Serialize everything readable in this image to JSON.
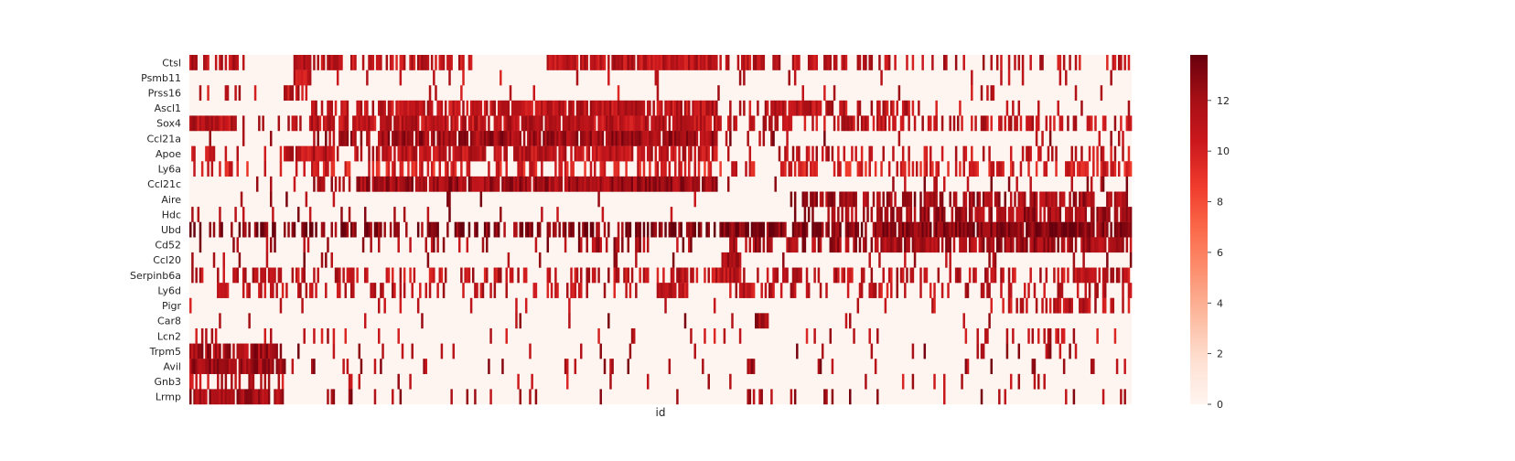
{
  "chart_data": {
    "type": "heatmap",
    "title": "",
    "xlabel": "id",
    "ylabel": "",
    "genes": [
      "Ctsl",
      "Psmb11",
      "Prss16",
      "Ascl1",
      "Sox4",
      "Ccl21a",
      "Apoe",
      "Ly6a",
      "Ccl21c",
      "Aire",
      "Hdc",
      "Ubd",
      "Cd52",
      "Ccl20",
      "Serpinb6a",
      "Ly6d",
      "Pigr",
      "Car8",
      "Lcn2",
      "Trpm5",
      "Avil",
      "Gnb3",
      "Lrmp"
    ],
    "colorbar": {
      "cmap": "Reds",
      "ticks": [
        0,
        2,
        4,
        6,
        8,
        10,
        12
      ],
      "vmin": 0,
      "vmax": 13.8
    },
    "x_axis": {
      "tick_labels": "none",
      "cell_count": 480
    },
    "expression_blocks": [
      {
        "gene": "Ctsl",
        "high_fraction_ranges": [
          [
            0.0,
            0.06,
            0.7
          ],
          [
            0.11,
            0.13,
            0.95
          ],
          [
            0.13,
            0.3,
            0.6
          ],
          [
            0.38,
            0.56,
            0.95
          ],
          [
            0.56,
            0.63,
            0.5
          ],
          [
            0.63,
            0.74,
            0.45
          ],
          [
            0.74,
            1.0,
            0.35
          ]
        ],
        "mean_level": 11
      },
      {
        "gene": "Psmb11",
        "high_fraction_ranges": [
          [
            0.11,
            0.13,
            0.9
          ],
          [
            0.13,
            1.0,
            0.05
          ]
        ],
        "mean_level": 11
      },
      {
        "gene": "Prss16",
        "high_fraction_ranges": [
          [
            0.1,
            0.13,
            0.8
          ],
          [
            0.0,
            1.0,
            0.04
          ]
        ],
        "mean_level": 11
      },
      {
        "gene": "Ascl1",
        "high_fraction_ranges": [
          [
            0.13,
            0.2,
            0.6
          ],
          [
            0.2,
            0.56,
            0.85
          ],
          [
            0.56,
            0.63,
            0.25
          ],
          [
            0.6,
            0.7,
            0.3
          ],
          [
            0.61,
            0.67,
            0.85
          ],
          [
            0.67,
            0.76,
            0.6
          ],
          [
            0.76,
            1.0,
            0.15
          ]
        ],
        "mean_level": 11
      },
      {
        "gene": "Sox4",
        "high_fraction_ranges": [
          [
            0.0,
            0.05,
            0.9
          ],
          [
            0.05,
            0.13,
            0.35
          ],
          [
            0.13,
            0.56,
            0.9
          ],
          [
            0.56,
            0.63,
            0.5
          ],
          [
            0.63,
            1.0,
            0.45
          ]
        ],
        "mean_level": 11
      },
      {
        "gene": "Ccl21a",
        "high_fraction_ranges": [
          [
            0.0,
            0.13,
            0.05
          ],
          [
            0.13,
            0.2,
            0.4
          ],
          [
            0.2,
            0.56,
            0.95
          ],
          [
            0.56,
            0.63,
            0.2
          ],
          [
            0.63,
            1.0,
            0.05
          ]
        ],
        "mean_level": 12
      },
      {
        "gene": "Apoe",
        "high_fraction_ranges": [
          [
            0.0,
            0.05,
            0.5
          ],
          [
            0.05,
            0.1,
            0.2
          ],
          [
            0.1,
            0.15,
            0.85
          ],
          [
            0.15,
            0.2,
            0.5
          ],
          [
            0.2,
            0.56,
            0.75
          ],
          [
            0.56,
            0.63,
            0.1
          ],
          [
            0.63,
            1.0,
            0.35
          ]
        ],
        "mean_level": 11
      },
      {
        "gene": "Ly6a",
        "high_fraction_ranges": [
          [
            0.0,
            0.13,
            0.25
          ],
          [
            0.13,
            0.56,
            0.45
          ],
          [
            0.56,
            0.63,
            0.15
          ],
          [
            0.63,
            1.0,
            0.5
          ]
        ],
        "mean_level": 10
      },
      {
        "gene": "Ccl21c",
        "high_fraction_ranges": [
          [
            0.0,
            0.13,
            0.08
          ],
          [
            0.13,
            0.18,
            0.45
          ],
          [
            0.18,
            0.56,
            0.95
          ],
          [
            0.56,
            0.65,
            0.15
          ],
          [
            0.65,
            1.0,
            0.06
          ]
        ],
        "mean_level": 12
      },
      {
        "gene": "Aire",
        "high_fraction_ranges": [
          [
            0.0,
            0.56,
            0.03
          ],
          [
            0.56,
            0.65,
            0.08
          ],
          [
            0.65,
            0.8,
            0.7
          ],
          [
            0.8,
            1.0,
            0.55
          ]
        ],
        "mean_level": 12
      },
      {
        "gene": "Hdc",
        "high_fraction_ranges": [
          [
            0.0,
            0.56,
            0.06
          ],
          [
            0.56,
            0.65,
            0.05
          ],
          [
            0.65,
            0.73,
            0.35
          ],
          [
            0.73,
            1.0,
            0.7
          ]
        ],
        "mean_level": 12
      },
      {
        "gene": "Ubd",
        "high_fraction_ranges": [
          [
            0.0,
            0.13,
            0.45
          ],
          [
            0.13,
            0.29,
            0.55
          ],
          [
            0.29,
            0.56,
            0.6
          ],
          [
            0.56,
            0.63,
            0.95
          ],
          [
            0.63,
            0.73,
            0.8
          ],
          [
            0.73,
            1.0,
            0.95
          ]
        ],
        "mean_level": 13
      },
      {
        "gene": "Cd52",
        "high_fraction_ranges": [
          [
            0.0,
            0.4,
            0.15
          ],
          [
            0.4,
            0.56,
            0.3
          ],
          [
            0.56,
            0.73,
            0.45
          ],
          [
            0.73,
            1.0,
            0.85
          ]
        ],
        "mean_level": 12
      },
      {
        "gene": "Ccl20",
        "high_fraction_ranges": [
          [
            0.0,
            0.56,
            0.04
          ],
          [
            0.565,
            0.585,
            0.95
          ],
          [
            0.585,
            1.0,
            0.03
          ]
        ],
        "mean_level": 12
      },
      {
        "gene": "Serpinb6a",
        "high_fraction_ranges": [
          [
            0.0,
            0.13,
            0.45
          ],
          [
            0.13,
            0.56,
            0.4
          ],
          [
            0.555,
            0.585,
            0.9
          ],
          [
            0.585,
            1.0,
            0.45
          ]
        ],
        "mean_level": 11
      },
      {
        "gene": "Ly6d",
        "high_fraction_ranges": [
          [
            0.0,
            0.49,
            0.25
          ],
          [
            0.49,
            0.53,
            0.85
          ],
          [
            0.53,
            0.58,
            0.2
          ],
          [
            0.58,
            0.6,
            0.95
          ],
          [
            0.6,
            1.0,
            0.3
          ]
        ],
        "mean_level": 11
      },
      {
        "gene": "Pigr",
        "high_fraction_ranges": [
          [
            0.0,
            0.86,
            0.03
          ],
          [
            0.86,
            1.0,
            0.5
          ]
        ],
        "mean_level": 11
      },
      {
        "gene": "Car8",
        "high_fraction_ranges": [
          [
            0.0,
            0.6,
            0.02
          ],
          [
            0.6,
            0.615,
            0.9
          ],
          [
            0.615,
            1.0,
            0.02
          ]
        ],
        "mean_level": 12
      },
      {
        "gene": "Lcn2",
        "high_fraction_ranges": [
          [
            0.0,
            0.03,
            0.2
          ],
          [
            0.03,
            0.7,
            0.08
          ],
          [
            0.7,
            0.93,
            0.2
          ],
          [
            0.93,
            1.0,
            0.08
          ]
        ],
        "mean_level": 11
      },
      {
        "gene": "Trpm5",
        "high_fraction_ranges": [
          [
            0.0,
            0.1,
            0.85
          ],
          [
            0.1,
            1.0,
            0.06
          ]
        ],
        "mean_level": 12
      },
      {
        "gene": "Avil",
        "high_fraction_ranges": [
          [
            0.0,
            0.1,
            0.95
          ],
          [
            0.1,
            1.0,
            0.07
          ]
        ],
        "mean_level": 12
      },
      {
        "gene": "Gnb3",
        "high_fraction_ranges": [
          [
            0.0,
            0.1,
            0.35
          ],
          [
            0.1,
            1.0,
            0.04
          ]
        ],
        "mean_level": 11
      },
      {
        "gene": "Lrmp",
        "high_fraction_ranges": [
          [
            0.0,
            0.1,
            0.9
          ],
          [
            0.1,
            1.0,
            0.08
          ]
        ],
        "mean_level": 12
      }
    ]
  }
}
